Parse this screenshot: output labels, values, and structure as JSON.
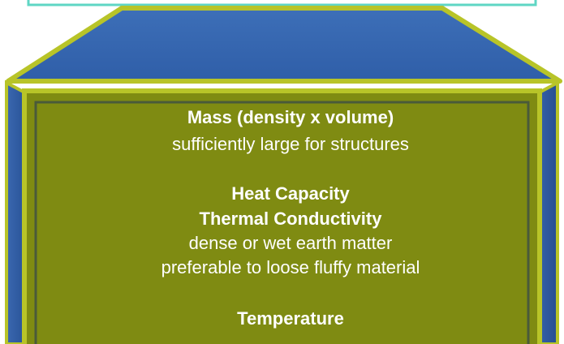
{
  "lines": [
    {
      "text": "Mass (density x volume)",
      "bold": true
    },
    {
      "text": "sufficiently large for structures",
      "bold": false
    },
    {
      "text": "Heat Capacity",
      "bold": true
    },
    {
      "text": "Thermal Conductivity",
      "bold": true
    },
    {
      "text": "dense or wet earth matter",
      "bold": false
    },
    {
      "text": "preferable to loose fluffy material",
      "bold": false
    },
    {
      "text": "Temperature",
      "bold": true
    }
  ]
}
